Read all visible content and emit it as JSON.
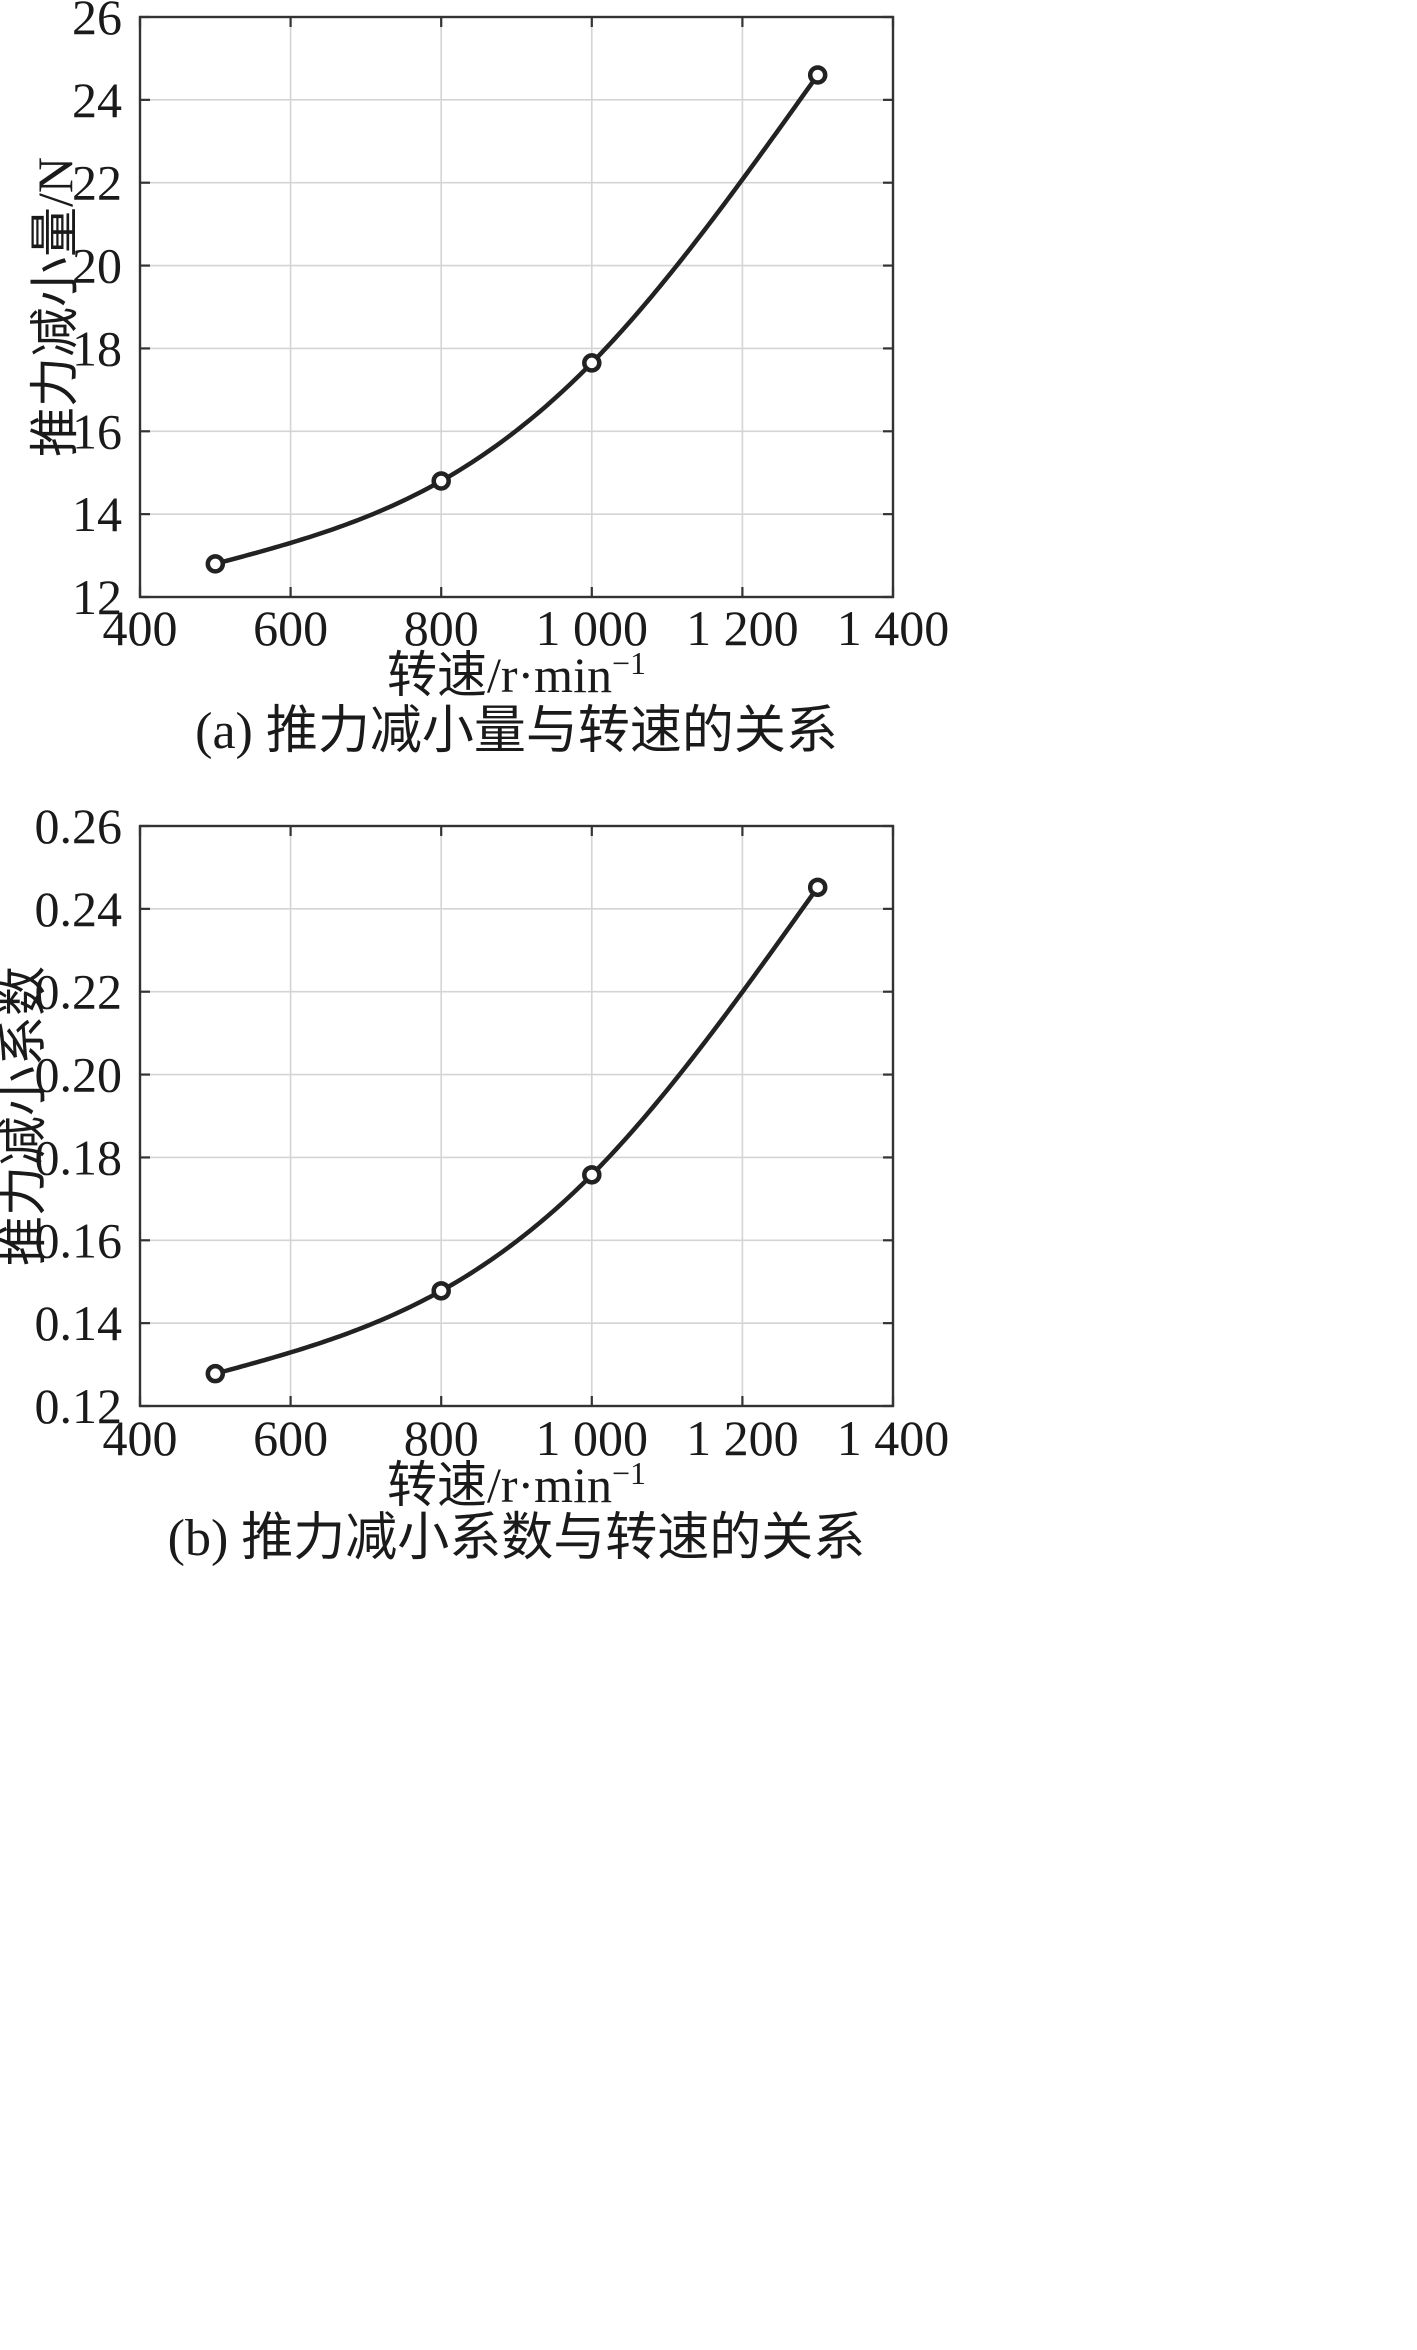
{
  "chart_data": [
    {
      "type": "line",
      "caption": "(a) 推力减小量与转速的关系",
      "xlabel": "转速/r·min",
      "xlabel_sup": "−1",
      "ylabel": "推力减小量/N",
      "xlim": [
        400,
        1400
      ],
      "ylim": [
        12,
        26
      ],
      "xticks": [
        400,
        600,
        800,
        1000,
        1200,
        1400
      ],
      "xtick_labels": [
        "400",
        "600",
        "800",
        "1 000",
        "1 200",
        "1 400"
      ],
      "yticks": [
        12,
        14,
        16,
        18,
        20,
        22,
        24,
        26
      ],
      "ytick_labels": [
        "12",
        "14",
        "16",
        "18",
        "20",
        "22",
        "24",
        "26"
      ],
      "grid": true,
      "series": [
        {
          "x": [
            500,
            800,
            1000,
            1300
          ],
          "y": [
            12.8,
            14.8,
            17.65,
            24.6
          ],
          "marker": "circle",
          "color": "#222222"
        }
      ]
    },
    {
      "type": "line",
      "caption": "(b) 推力减小系数与转速的关系",
      "xlabel": "转速/r·min",
      "xlabel_sup": "−1",
      "ylabel": "推力减小系数",
      "xlim": [
        400,
        1400
      ],
      "ylim": [
        0.12,
        0.26
      ],
      "xticks": [
        400,
        600,
        800,
        1000,
        1200,
        1400
      ],
      "xtick_labels": [
        "400",
        "600",
        "800",
        "1 000",
        "1 200",
        "1 400"
      ],
      "yticks": [
        0.12,
        0.14,
        0.16,
        0.18,
        0.2,
        0.22,
        0.24,
        0.26
      ],
      "ytick_labels": [
        "0.12",
        "0.14",
        "0.16",
        "0.18",
        "0.20",
        "0.22",
        "0.24",
        "0.26"
      ],
      "grid": true,
      "series": [
        {
          "x": [
            500,
            800,
            1000,
            1300
          ],
          "y": [
            0.1278,
            0.1478,
            0.1758,
            0.2452
          ],
          "marker": "circle",
          "color": "#222222"
        }
      ]
    }
  ]
}
